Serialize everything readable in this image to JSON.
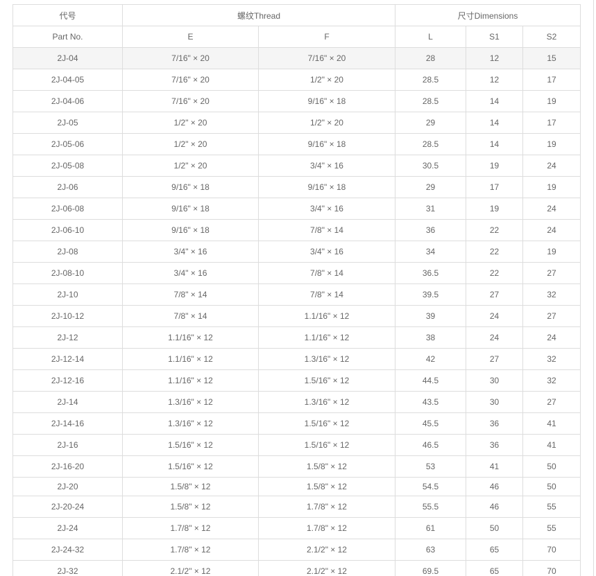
{
  "header": {
    "part_cn": "代号",
    "part_en": "Part No.",
    "thread": "螺纹Thread",
    "dimensions": "尺寸Dimensions",
    "cols": [
      "E",
      "F",
      "L",
      "S1",
      "S2"
    ]
  },
  "rows": [
    [
      "2J-04",
      "7/16\" × 20",
      "7/16\" × 20",
      "28",
      "12",
      "15"
    ],
    [
      "2J-04-05",
      "7/16\" × 20",
      "1/2\" × 20",
      "28.5",
      "12",
      "17"
    ],
    [
      "2J-04-06",
      "7/16\" × 20",
      "9/16\" × 18",
      "28.5",
      "14",
      "19"
    ],
    [
      "2J-05",
      "1/2\" × 20",
      "1/2\" × 20",
      "29",
      "14",
      "17"
    ],
    [
      "2J-05-06",
      "1/2\" × 20",
      "9/16\" × 18",
      "28.5",
      "14",
      "19"
    ],
    [
      "2J-05-08",
      "1/2\" × 20",
      "3/4\" × 16",
      "30.5",
      "19",
      "24"
    ],
    [
      "2J-06",
      "9/16\" × 18",
      "9/16\" × 18",
      "29",
      "17",
      "19"
    ],
    [
      "2J-06-08",
      "9/16\" × 18",
      "3/4\" × 16",
      "31",
      "19",
      "24"
    ],
    [
      "2J-06-10",
      "9/16\" × 18",
      "7/8\" × 14",
      "36",
      "22",
      "24"
    ],
    [
      "2J-08",
      "3/4\" × 16",
      "3/4\" × 16",
      "34",
      "22",
      "19"
    ],
    [
      "2J-08-10",
      "3/4\" × 16",
      "7/8\" × 14",
      "36.5",
      "22",
      "27"
    ],
    [
      "2J-10",
      "7/8\" × 14",
      "7/8\" × 14",
      "39.5",
      "27",
      "32"
    ],
    [
      "2J-10-12",
      "7/8\" × 14",
      "1.1/16\" × 12",
      "39",
      "24",
      "27"
    ],
    [
      "2J-12",
      "1.1/16\" × 12",
      "1.1/16\" × 12",
      "38",
      "24",
      "24"
    ],
    [
      "2J-12-14",
      "1.1/16\" × 12",
      "1.3/16\" × 12",
      "42",
      "27",
      "32"
    ],
    [
      "2J-12-16",
      "1.1/16\" × 12",
      "1.5/16\" × 12",
      "44.5",
      "30",
      "32"
    ],
    [
      "2J-14",
      "1.3/16\" × 12",
      "1.3/16\" × 12",
      "43.5",
      "30",
      "27"
    ],
    [
      "2J-14-16",
      "1.3/16\" × 12",
      "1.5/16\" × 12",
      "45.5",
      "36",
      "41"
    ],
    [
      "2J-16",
      "1.5/16\" × 12",
      "1.5/16\" × 12",
      "46.5",
      "36",
      "41"
    ],
    [
      "2J-16-20",
      "1.5/16\" × 12",
      "1.5/8\" × 12",
      "53",
      "41",
      "50"
    ],
    [
      "2J-20",
      "1.5/8\" × 12",
      "1.5/8\" × 12",
      "54.5",
      "46",
      "50"
    ],
    [
      "2J-20-24",
      "1.5/8\" × 12",
      "1.7/8\" × 12",
      "55.5",
      "46",
      "55"
    ],
    [
      "2J-24",
      "1.7/8\" × 12",
      "1.7/8\" × 12",
      "61",
      "50",
      "55"
    ],
    [
      "2J-24-32",
      "1.7/8\" × 12",
      "2.1/2\" × 12",
      "63",
      "65",
      "70"
    ],
    [
      "2J-32",
      "2.1/2\" × 12",
      "2.1/2\" × 12",
      "69.5",
      "65",
      "70"
    ]
  ]
}
